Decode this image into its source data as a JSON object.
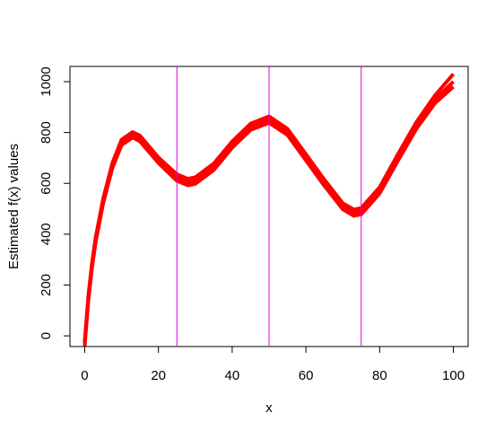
{
  "chart_data": {
    "type": "line",
    "xlabel": "x",
    "ylabel": "Estimated f(x) values",
    "x": [
      0,
      1,
      2,
      3,
      5,
      7.5,
      10,
      13,
      15,
      20,
      25,
      28,
      30,
      35,
      40,
      45,
      50,
      55,
      60,
      65,
      70,
      73,
      75,
      80,
      85,
      90,
      95,
      100
    ],
    "series": [
      {
        "color": "#ff0000",
        "values": [
          -40,
          140,
          270,
          370,
          520,
          660,
          750,
          780,
          765,
          680,
          610,
          592,
          598,
          652,
          740,
          810,
          838,
          790,
          690,
          590,
          498,
          472,
          478,
          560,
          690,
          815,
          915,
          980
        ]
      },
      {
        "color": "#ff0000",
        "values": [
          -30,
          150,
          280,
          380,
          530,
          670,
          760,
          790,
          775,
          690,
          622,
          605,
          610,
          665,
          752,
          822,
          850,
          802,
          702,
          602,
          510,
          484,
          490,
          572,
          702,
          828,
          930,
          1000
        ]
      },
      {
        "color": "#ff0000",
        "values": [
          -20,
          160,
          290,
          390,
          540,
          680,
          772,
          802,
          788,
          702,
          636,
          618,
          624,
          678,
          765,
          835,
          864,
          815,
          715,
          615,
          522,
          497,
          503,
          585,
          716,
          842,
          946,
          1030
        ]
      }
    ],
    "vlines": [
      25,
      50,
      75
    ],
    "vline_color": "#e000e0",
    "xlim": [
      -4,
      104
    ],
    "ylim": [
      -42,
      1060
    ],
    "xticks": [
      0,
      20,
      40,
      60,
      80,
      100
    ],
    "yticks": [
      0,
      200,
      400,
      600,
      800,
      1000
    ]
  }
}
